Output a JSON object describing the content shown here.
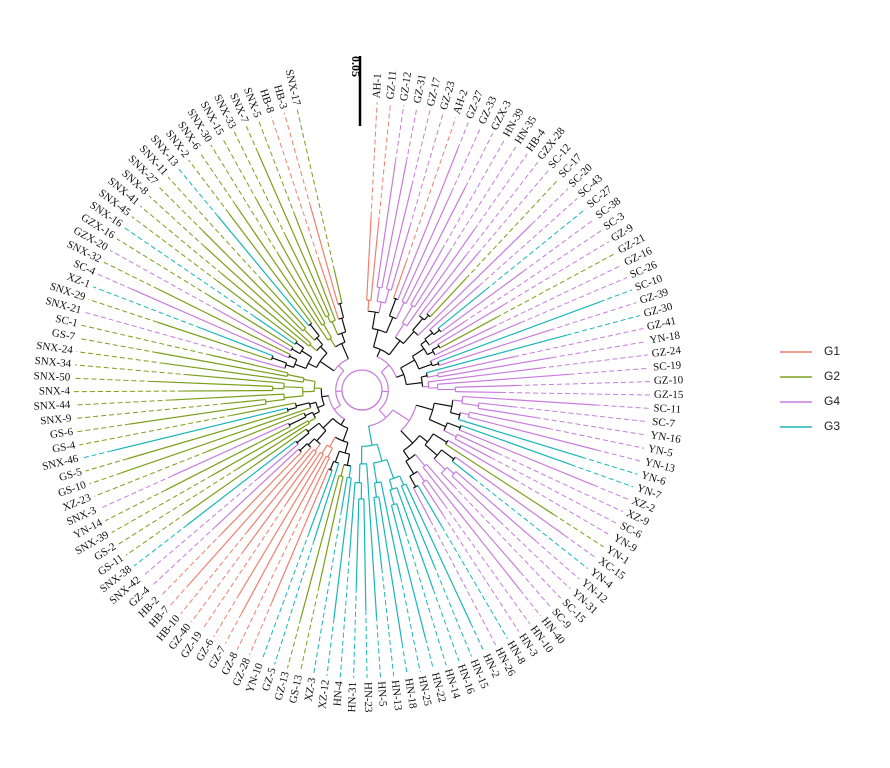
{
  "scale_bar": {
    "label": "0.05"
  },
  "legend": [
    {
      "name": "G1",
      "color": "#f07f6e"
    },
    {
      "name": "G2",
      "color": "#7c9f1b"
    },
    {
      "name": "G4",
      "color": "#c77cdc"
    },
    {
      "name": "G3",
      "color": "#1ab5b8"
    }
  ],
  "leaves": [
    {
      "label": "AH-1",
      "group": "G1"
    },
    {
      "label": "GZ-11",
      "group": "G1"
    },
    {
      "label": "GZ-12",
      "group": "G4"
    },
    {
      "label": "GZ-31",
      "group": "G4"
    },
    {
      "label": "GZ-17",
      "group": "G4"
    },
    {
      "label": "GZ-23",
      "group": "G4"
    },
    {
      "label": "AH-2",
      "group": "G1"
    },
    {
      "label": "GZ-27",
      "group": "G4"
    },
    {
      "label": "GZ-33",
      "group": "G4"
    },
    {
      "label": "GZX-3",
      "group": "G4"
    },
    {
      "label": "HN-39",
      "group": "G4"
    },
    {
      "label": "HN-35",
      "group": "G4"
    },
    {
      "label": "HB-4",
      "group": "G4"
    },
    {
      "label": "GZX-28",
      "group": "G4"
    },
    {
      "label": "SC-12",
      "group": "G4"
    },
    {
      "label": "SC-17",
      "group": "G2"
    },
    {
      "label": "SC-20",
      "group": "G4"
    },
    {
      "label": "SC-43",
      "group": "G4"
    },
    {
      "label": "SC-27",
      "group": "G3"
    },
    {
      "label": "SC-38",
      "group": "G4"
    },
    {
      "label": "SC-3",
      "group": "G4"
    },
    {
      "label": "GZ-9",
      "group": "G4"
    },
    {
      "label": "GZ-21",
      "group": "G2"
    },
    {
      "label": "GZ-16",
      "group": "G4"
    },
    {
      "label": "SC-26",
      "group": "G4"
    },
    {
      "label": "SC-10",
      "group": "G3"
    },
    {
      "label": "GZ-39",
      "group": "G4"
    },
    {
      "label": "GZ-30",
      "group": "G3"
    },
    {
      "label": "GZ-41",
      "group": "G4"
    },
    {
      "label": "YN-18",
      "group": "G4"
    },
    {
      "label": "GZ-24",
      "group": "G4"
    },
    {
      "label": "SC-19",
      "group": "G4"
    },
    {
      "label": "GZ-10",
      "group": "G4"
    },
    {
      "label": "GZ-15",
      "group": "G4"
    },
    {
      "label": "SC-11",
      "group": "G4"
    },
    {
      "label": "SC-7",
      "group": "G4"
    },
    {
      "label": "YN-16",
      "group": "G4"
    },
    {
      "label": "YN-5",
      "group": "G4"
    },
    {
      "label": "YN-13",
      "group": "G4"
    },
    {
      "label": "YN-6",
      "group": "G3"
    },
    {
      "label": "YN-7",
      "group": "G3"
    },
    {
      "label": "XZ-2",
      "group": "G4"
    },
    {
      "label": "XZ-9",
      "group": "G4"
    },
    {
      "label": "SC-6",
      "group": "G4"
    },
    {
      "label": "YN-9",
      "group": "G4"
    },
    {
      "label": "YN-1",
      "group": "G2"
    },
    {
      "label": "XC-15",
      "group": "G4"
    },
    {
      "label": "YN-4",
      "group": "G3"
    },
    {
      "label": "YN-12",
      "group": "G4"
    },
    {
      "label": "YN-31",
      "group": "G4"
    },
    {
      "label": "SC-15",
      "group": "G4"
    },
    {
      "label": "SC-9",
      "group": "G4"
    },
    {
      "label": "HN-40",
      "group": "G4"
    },
    {
      "label": "HN-10",
      "group": "G4"
    },
    {
      "label": "HN-3",
      "group": "G4"
    },
    {
      "label": "HN-8",
      "group": "G3"
    },
    {
      "label": "HN-26",
      "group": "G4"
    },
    {
      "label": "HN-2",
      "group": "G3"
    },
    {
      "label": "HN-15",
      "group": "G3"
    },
    {
      "label": "HN-16",
      "group": "G3"
    },
    {
      "label": "HN-14",
      "group": "G3"
    },
    {
      "label": "HN-22",
      "group": "G3"
    },
    {
      "label": "HN-25",
      "group": "G3"
    },
    {
      "label": "HN-18",
      "group": "G3"
    },
    {
      "label": "HN-13",
      "group": "G3"
    },
    {
      "label": "HN-5",
      "group": "G3"
    },
    {
      "label": "HN-23",
      "group": "G3"
    },
    {
      "label": "HN-31",
      "group": "G3"
    },
    {
      "label": "HN-4",
      "group": "G3"
    },
    {
      "label": "XZ-12",
      "group": "G3"
    },
    {
      "label": "XZ-3",
      "group": "G3"
    },
    {
      "label": "GS-13",
      "group": "G2"
    },
    {
      "label": "GZ-13",
      "group": "G2"
    },
    {
      "label": "GZ-5",
      "group": "G3"
    },
    {
      "label": "YN-10",
      "group": "G3"
    },
    {
      "label": "GZ-28",
      "group": "G1"
    },
    {
      "label": "GZ-8",
      "group": "G1"
    },
    {
      "label": "GZ-7",
      "group": "G1"
    },
    {
      "label": "GZ-6",
      "group": "G1"
    },
    {
      "label": "GZ-19",
      "group": "G1"
    },
    {
      "label": "GZ-40",
      "group": "G1"
    },
    {
      "label": "HB-10",
      "group": "G1"
    },
    {
      "label": "HB-7",
      "group": "G1"
    },
    {
      "label": "HB-2",
      "group": "G1"
    },
    {
      "label": "GZ-4",
      "group": "G4"
    },
    {
      "label": "SNX-42",
      "group": "G4"
    },
    {
      "label": "SNX-38",
      "group": "G3"
    },
    {
      "label": "GS-11",
      "group": "G2"
    },
    {
      "label": "GS-2",
      "group": "G2"
    },
    {
      "label": "SNX-39",
      "group": "G2"
    },
    {
      "label": "YN-14",
      "group": "G2"
    },
    {
      "label": "SNX-3",
      "group": "G4"
    },
    {
      "label": "XZ-23",
      "group": "G2"
    },
    {
      "label": "GS-10",
      "group": "G2"
    },
    {
      "label": "GS-5",
      "group": "G2"
    },
    {
      "label": "SNX-46",
      "group": "G3"
    },
    {
      "label": "GS-4",
      "group": "G2"
    },
    {
      "label": "GS-6",
      "group": "G2"
    },
    {
      "label": "SNX-9",
      "group": "G2"
    },
    {
      "label": "SNX-44",
      "group": "G2"
    },
    {
      "label": "SNX-4",
      "group": "G2"
    },
    {
      "label": "SNX-50",
      "group": "G2"
    },
    {
      "label": "SNX-34",
      "group": "G2"
    },
    {
      "label": "SNX-24",
      "group": "G2"
    },
    {
      "label": "GS-7",
      "group": "G2"
    },
    {
      "label": "SC-1",
      "group": "G2"
    },
    {
      "label": "SNX-21",
      "group": "G4"
    },
    {
      "label": "SNX-29",
      "group": "G2"
    },
    {
      "label": "XZ-1",
      "group": "G3"
    },
    {
      "label": "SC-4",
      "group": "G4"
    },
    {
      "label": "SNX-32",
      "group": "G2"
    },
    {
      "label": "GZX-20",
      "group": "G4"
    },
    {
      "label": "GZX-16",
      "group": "G2"
    },
    {
      "label": "SNX-16",
      "group": "G3"
    },
    {
      "label": "SNX-45",
      "group": "G2"
    },
    {
      "label": "SNX-41",
      "group": "G2"
    },
    {
      "label": "SNX-8",
      "group": "G2"
    },
    {
      "label": "SNX-27",
      "group": "G2"
    },
    {
      "label": "SNX-11",
      "group": "G2"
    },
    {
      "label": "SNX-13",
      "group": "G3"
    },
    {
      "label": "SNX-2",
      "group": "G2"
    },
    {
      "label": "SNX-6",
      "group": "G2"
    },
    {
      "label": "SNX-30",
      "group": "G2"
    },
    {
      "label": "SNX-15",
      "group": "G2"
    },
    {
      "label": "SNX-33",
      "group": "G2"
    },
    {
      "label": "SNX-7",
      "group": "G2"
    },
    {
      "label": "SNX-5",
      "group": "G2"
    },
    {
      "label": "HB-8",
      "group": "G1"
    },
    {
      "label": "HB-3",
      "group": "G1"
    },
    {
      "label": "SNX-17",
      "group": "G2"
    }
  ]
}
